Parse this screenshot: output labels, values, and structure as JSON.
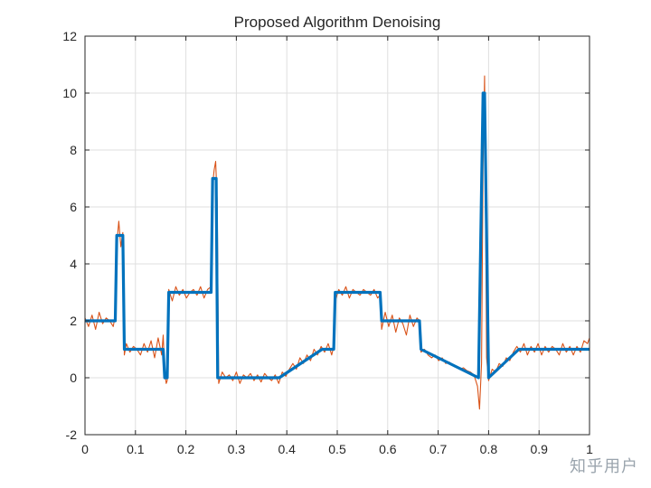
{
  "chart_data": {
    "type": "line",
    "title": "Proposed Algorithm Denoising",
    "xlabel": "",
    "ylabel": "",
    "xlim": [
      0,
      1
    ],
    "ylim": [
      -2,
      12
    ],
    "x_ticks": [
      "0",
      "0.1",
      "0.2",
      "0.3",
      "0.4",
      "0.5",
      "0.6",
      "0.7",
      "0.8",
      "0.9",
      "1"
    ],
    "y_ticks": [
      "-2",
      "0",
      "2",
      "4",
      "6",
      "8",
      "10",
      "12"
    ],
    "grid": true,
    "legend": "none",
    "series": [
      {
        "color": "#0072BD",
        "x": [
          0,
          0.06,
          0.063,
          0.075,
          0.078,
          0.155,
          0.158,
          0.163,
          0.166,
          0.25,
          0.253,
          0.26,
          0.263,
          0.385,
          0.47,
          0.493,
          0.496,
          0.585,
          0.588,
          0.655,
          0.663,
          0.666,
          0.78,
          0.789,
          0.792,
          0.8,
          0.86,
          1.0
        ],
        "y": [
          2,
          2,
          5,
          5,
          1,
          1,
          0,
          0,
          3,
          3,
          7,
          7,
          0,
          0,
          1,
          1,
          3,
          3,
          2,
          2,
          2,
          1,
          0,
          10,
          10,
          0,
          1,
          1
        ]
      },
      {
        "color": "#D95319",
        "x": [
          0,
          0.007,
          0.014,
          0.021,
          0.028,
          0.035,
          0.042,
          0.049,
          0.056,
          0.06,
          0.063,
          0.067,
          0.071,
          0.075,
          0.078,
          0.082,
          0.089,
          0.096,
          0.103,
          0.11,
          0.117,
          0.124,
          0.131,
          0.138,
          0.145,
          0.152,
          0.155,
          0.158,
          0.161,
          0.163,
          0.166,
          0.173,
          0.18,
          0.187,
          0.194,
          0.201,
          0.208,
          0.215,
          0.222,
          0.229,
          0.236,
          0.243,
          0.25,
          0.253,
          0.256,
          0.259,
          0.262,
          0.265,
          0.272,
          0.279,
          0.286,
          0.293,
          0.3,
          0.307,
          0.314,
          0.321,
          0.328,
          0.335,
          0.342,
          0.349,
          0.356,
          0.363,
          0.37,
          0.377,
          0.384,
          0.391,
          0.398,
          0.405,
          0.412,
          0.419,
          0.426,
          0.433,
          0.44,
          0.447,
          0.454,
          0.461,
          0.468,
          0.475,
          0.482,
          0.489,
          0.493,
          0.496,
          0.503,
          0.51,
          0.517,
          0.524,
          0.531,
          0.538,
          0.545,
          0.552,
          0.559,
          0.566,
          0.573,
          0.58,
          0.585,
          0.588,
          0.595,
          0.602,
          0.609,
          0.616,
          0.623,
          0.63,
          0.637,
          0.644,
          0.651,
          0.658,
          0.663,
          0.666,
          0.673,
          0.68,
          0.687,
          0.694,
          0.701,
          0.708,
          0.715,
          0.722,
          0.729,
          0.736,
          0.743,
          0.75,
          0.757,
          0.764,
          0.771,
          0.778,
          0.782,
          0.786,
          0.789,
          0.792,
          0.796,
          0.8,
          0.807,
          0.814,
          0.821,
          0.828,
          0.835,
          0.842,
          0.849,
          0.856,
          0.863,
          0.87,
          0.877,
          0.884,
          0.891,
          0.898,
          0.905,
          0.912,
          0.919,
          0.926,
          0.933,
          0.94,
          0.947,
          0.954,
          0.961,
          0.968,
          0.975,
          0.982,
          0.989,
          0.996,
          1.0
        ],
        "y": [
          2.1,
          1.8,
          2.2,
          1.7,
          2.3,
          1.9,
          2.1,
          2.0,
          1.8,
          2.2,
          4.7,
          5.5,
          4.6,
          5.1,
          0.8,
          1.2,
          0.9,
          1.1,
          1.0,
          0.8,
          1.2,
          0.9,
          1.3,
          0.7,
          1.4,
          0.8,
          1.5,
          0.2,
          -0.2,
          -0.1,
          3.1,
          2.7,
          3.2,
          2.9,
          3.1,
          2.8,
          3.0,
          3.1,
          2.9,
          3.2,
          2.8,
          3.1,
          3.2,
          6.8,
          7.3,
          7.6,
          6.2,
          -0.2,
          0.2,
          0.0,
          0.1,
          -0.1,
          0.2,
          -0.2,
          0.1,
          0.0,
          0.15,
          -0.1,
          0.1,
          -0.15,
          0.15,
          0.0,
          -0.1,
          0.1,
          -0.2,
          0.2,
          0.05,
          0.3,
          0.5,
          0.3,
          0.7,
          0.5,
          0.8,
          0.6,
          1.0,
          0.8,
          1.1,
          0.9,
          1.2,
          0.8,
          1.1,
          2.7,
          3.1,
          2.9,
          3.2,
          2.8,
          3.1,
          3.0,
          2.9,
          3.1,
          3.0,
          2.9,
          3.1,
          2.8,
          2.9,
          1.7,
          2.3,
          1.8,
          2.2,
          1.6,
          2.1,
          1.9,
          1.5,
          2.2,
          1.8,
          2.1,
          2.0,
          0.9,
          1.0,
          0.8,
          0.7,
          0.8,
          0.6,
          0.7,
          0.5,
          0.55,
          0.45,
          0.4,
          0.3,
          0.35,
          0.25,
          0.2,
          0.1,
          -0.3,
          -1.1,
          0.5,
          7.5,
          10.6,
          0.7,
          -0.1,
          0.3,
          0.2,
          0.5,
          0.4,
          0.7,
          0.6,
          0.9,
          1.1,
          0.9,
          1.2,
          0.8,
          1.1,
          0.9,
          1.2,
          0.8,
          1.1,
          0.9,
          1.1,
          1.0,
          0.8,
          1.2,
          0.9,
          1.1,
          0.8,
          1.1,
          0.9,
          1.3,
          1.2,
          1.4
        ]
      }
    ]
  },
  "watermark": "知乎用户"
}
